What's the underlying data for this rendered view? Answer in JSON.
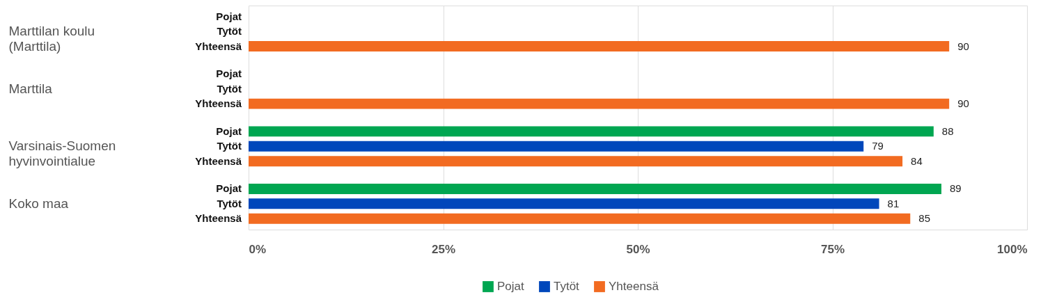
{
  "chart_data": {
    "type": "bar",
    "orientation": "horizontal",
    "categories": [
      "Marttilan koulu\n(Marttila)",
      "Marttila",
      "Varsinais-Suomen\nhyvinvointialue",
      "Koko maa"
    ],
    "series": [
      {
        "name": "Pojat",
        "color": "#00a651",
        "values": [
          null,
          null,
          88,
          89
        ]
      },
      {
        "name": "Tytöt",
        "color": "#0047bb",
        "values": [
          null,
          null,
          79,
          81
        ]
      },
      {
        "name": "Yhteensä",
        "color": "#f26b21",
        "values": [
          90,
          90,
          84,
          85
        ]
      }
    ],
    "xlim": [
      0,
      100
    ],
    "xticks": [
      {
        "value": 0,
        "label": "0%"
      },
      {
        "value": 25,
        "label": "25%"
      },
      {
        "value": 50,
        "label": "50%"
      },
      {
        "value": 75,
        "label": "75%"
      },
      {
        "value": 100,
        "label": "100%"
      }
    ],
    "grid": "x",
    "legend": "bottom",
    "data_labels": true
  }
}
